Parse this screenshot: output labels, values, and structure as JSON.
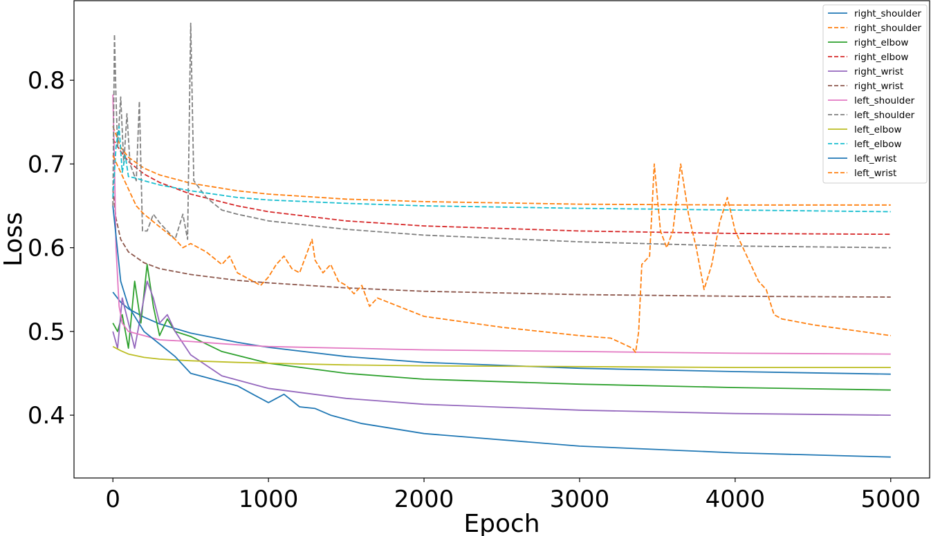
{
  "chart_data": {
    "type": "line",
    "title": "",
    "xlabel": "Epoch",
    "ylabel": "Loss",
    "xlim": [
      -250,
      5250
    ],
    "ylim": [
      0.325,
      0.895
    ],
    "xticks": [
      0,
      1000,
      2000,
      3000,
      4000,
      5000
    ],
    "xtick_labels": [
      "0",
      "1000",
      "2000",
      "3000",
      "4000",
      "5000"
    ],
    "yticks": [
      0.4,
      0.5,
      0.6,
      0.7,
      0.8
    ],
    "ytick_labels": [
      "0.4",
      "0.5",
      "0.6",
      "0.7",
      "0.8"
    ],
    "grid": false,
    "legend_position": "top-right",
    "series": [
      {
        "name": "right_shoulder",
        "color": "#1f77b4",
        "style": "solid",
        "x": [
          0,
          50,
          100,
          200,
          300,
          500,
          800,
          1000,
          1500,
          2000,
          3000,
          4000,
          5000
        ],
        "y": [
          0.547,
          0.535,
          0.527,
          0.517,
          0.509,
          0.498,
          0.487,
          0.481,
          0.47,
          0.463,
          0.456,
          0.452,
          0.449
        ]
      },
      {
        "name": "right_shoulder",
        "color": "#ff7f0e",
        "style": "dashed",
        "x": [
          0,
          50,
          100,
          200,
          300,
          500,
          800,
          1000,
          1500,
          2000,
          3000,
          4000,
          5000
        ],
        "y": [
          0.745,
          0.72,
          0.708,
          0.695,
          0.687,
          0.677,
          0.668,
          0.664,
          0.658,
          0.655,
          0.652,
          0.651,
          0.651
        ]
      },
      {
        "name": "right_elbow",
        "color": "#2ca02c",
        "style": "solid",
        "x": [
          0,
          30,
          60,
          100,
          140,
          180,
          220,
          260,
          300,
          350,
          400,
          500,
          700,
          1000,
          1500,
          2000,
          3000,
          4000,
          5000
        ],
        "y": [
          0.51,
          0.5,
          0.52,
          0.48,
          0.56,
          0.51,
          0.58,
          0.53,
          0.495,
          0.515,
          0.5,
          0.494,
          0.476,
          0.462,
          0.45,
          0.443,
          0.437,
          0.433,
          0.43
        ]
      },
      {
        "name": "right_elbow",
        "color": "#d62728",
        "style": "dashed",
        "x": [
          0,
          50,
          100,
          200,
          300,
          500,
          800,
          1000,
          1500,
          2000,
          3000,
          4000,
          5000
        ],
        "y": [
          0.73,
          0.715,
          0.703,
          0.688,
          0.678,
          0.664,
          0.65,
          0.643,
          0.632,
          0.626,
          0.62,
          0.617,
          0.616
        ]
      },
      {
        "name": "right_wrist",
        "color": "#9467bd",
        "style": "solid",
        "x": [
          0,
          30,
          60,
          100,
          140,
          180,
          220,
          260,
          300,
          350,
          400,
          500,
          700,
          1000,
          1500,
          2000,
          3000,
          4000,
          5000
        ],
        "y": [
          0.5,
          0.48,
          0.54,
          0.51,
          0.48,
          0.52,
          0.56,
          0.54,
          0.51,
          0.52,
          0.5,
          0.472,
          0.447,
          0.432,
          0.42,
          0.413,
          0.406,
          0.402,
          0.4
        ]
      },
      {
        "name": "right_wrist",
        "color": "#8c564b",
        "style": "dashed",
        "x": [
          0,
          20,
          50,
          100,
          200,
          300,
          500,
          800,
          1000,
          1500,
          2000,
          3000,
          4000,
          5000
        ],
        "y": [
          0.67,
          0.635,
          0.61,
          0.595,
          0.582,
          0.575,
          0.568,
          0.561,
          0.558,
          0.552,
          0.548,
          0.544,
          0.542,
          0.541
        ]
      },
      {
        "name": "left_shoulder",
        "color": "#e377c2",
        "style": "solid",
        "x": [
          0,
          10,
          20,
          40,
          60,
          100,
          200,
          300,
          500,
          800,
          1000,
          1500,
          2000,
          3000,
          4000,
          5000
        ],
        "y": [
          0.783,
          0.7,
          0.6,
          0.53,
          0.51,
          0.5,
          0.495,
          0.49,
          0.488,
          0.484,
          0.482,
          0.48,
          0.478,
          0.476,
          0.474,
          0.473
        ]
      },
      {
        "name": "left_shoulder",
        "color": "#7f7f7f",
        "style": "dashed",
        "x": [
          0,
          10,
          20,
          30,
          50,
          70,
          90,
          110,
          150,
          170,
          190,
          220,
          260,
          300,
          350,
          400,
          450,
          480,
          500,
          520,
          560,
          600,
          700,
          800,
          1000,
          1500,
          2000,
          3000,
          4000,
          5000
        ],
        "y": [
          0.65,
          0.855,
          0.78,
          0.72,
          0.78,
          0.7,
          0.76,
          0.7,
          0.68,
          0.775,
          0.62,
          0.62,
          0.64,
          0.63,
          0.62,
          0.61,
          0.64,
          0.61,
          0.868,
          0.68,
          0.67,
          0.66,
          0.645,
          0.64,
          0.632,
          0.622,
          0.615,
          0.607,
          0.602,
          0.6
        ]
      },
      {
        "name": "left_elbow",
        "color": "#bcbd22",
        "style": "solid",
        "x": [
          0,
          50,
          100,
          200,
          300,
          500,
          800,
          1000,
          1500,
          2000,
          3000,
          4000,
          5000
        ],
        "y": [
          0.482,
          0.477,
          0.473,
          0.469,
          0.467,
          0.465,
          0.463,
          0.462,
          0.46,
          0.459,
          0.458,
          0.457,
          0.457
        ]
      },
      {
        "name": "left_elbow",
        "color": "#17becf",
        "style": "dashed",
        "x": [
          0,
          20,
          40,
          60,
          80,
          100,
          150,
          200,
          300,
          500,
          800,
          1000,
          1500,
          2000,
          3000,
          4000,
          5000
        ],
        "y": [
          0.66,
          0.72,
          0.745,
          0.69,
          0.71,
          0.685,
          0.683,
          0.68,
          0.675,
          0.668,
          0.66,
          0.657,
          0.653,
          0.65,
          0.647,
          0.645,
          0.643
        ]
      },
      {
        "name": "left_wrist",
        "color": "#1f77b4",
        "style": "solid",
        "x": [
          0,
          50,
          100,
          150,
          200,
          300,
          400,
          500,
          600,
          700,
          800,
          900,
          1000,
          1100,
          1200,
          1300,
          1400,
          1600,
          2000,
          3000,
          4000,
          5000
        ],
        "y": [
          0.65,
          0.56,
          0.53,
          0.515,
          0.5,
          0.485,
          0.47,
          0.45,
          0.445,
          0.44,
          0.435,
          0.425,
          0.415,
          0.425,
          0.41,
          0.408,
          0.4,
          0.39,
          0.378,
          0.363,
          0.355,
          0.35
        ]
      },
      {
        "name": "left_wrist",
        "color": "#ff7f0e",
        "style": "dashed",
        "x": [
          0,
          50,
          100,
          150,
          200,
          300,
          400,
          450,
          500,
          550,
          600,
          700,
          750,
          800,
          900,
          950,
          1000,
          1050,
          1100,
          1150,
          1200,
          1280,
          1300,
          1350,
          1400,
          1450,
          1500,
          1550,
          1600,
          1650,
          1700,
          2000,
          2500,
          3000,
          3200,
          3340,
          3360,
          3380,
          3400,
          3450,
          3480,
          3520,
          3560,
          3600,
          3650,
          3700,
          3750,
          3800,
          3850,
          3900,
          3950,
          4000,
          4050,
          4100,
          4150,
          4200,
          4250,
          4300,
          4500,
          5000
        ],
        "y": [
          0.71,
          0.69,
          0.67,
          0.65,
          0.64,
          0.625,
          0.61,
          0.6,
          0.605,
          0.6,
          0.595,
          0.58,
          0.59,
          0.57,
          0.56,
          0.555,
          0.565,
          0.58,
          0.59,
          0.575,
          0.57,
          0.61,
          0.585,
          0.57,
          0.58,
          0.56,
          0.555,
          0.545,
          0.555,
          0.53,
          0.54,
          0.518,
          0.505,
          0.495,
          0.492,
          0.48,
          0.475,
          0.5,
          0.58,
          0.59,
          0.7,
          0.62,
          0.6,
          0.62,
          0.7,
          0.64,
          0.6,
          0.55,
          0.58,
          0.63,
          0.66,
          0.62,
          0.6,
          0.58,
          0.56,
          0.55,
          0.52,
          0.515,
          0.508,
          0.495
        ]
      }
    ]
  }
}
